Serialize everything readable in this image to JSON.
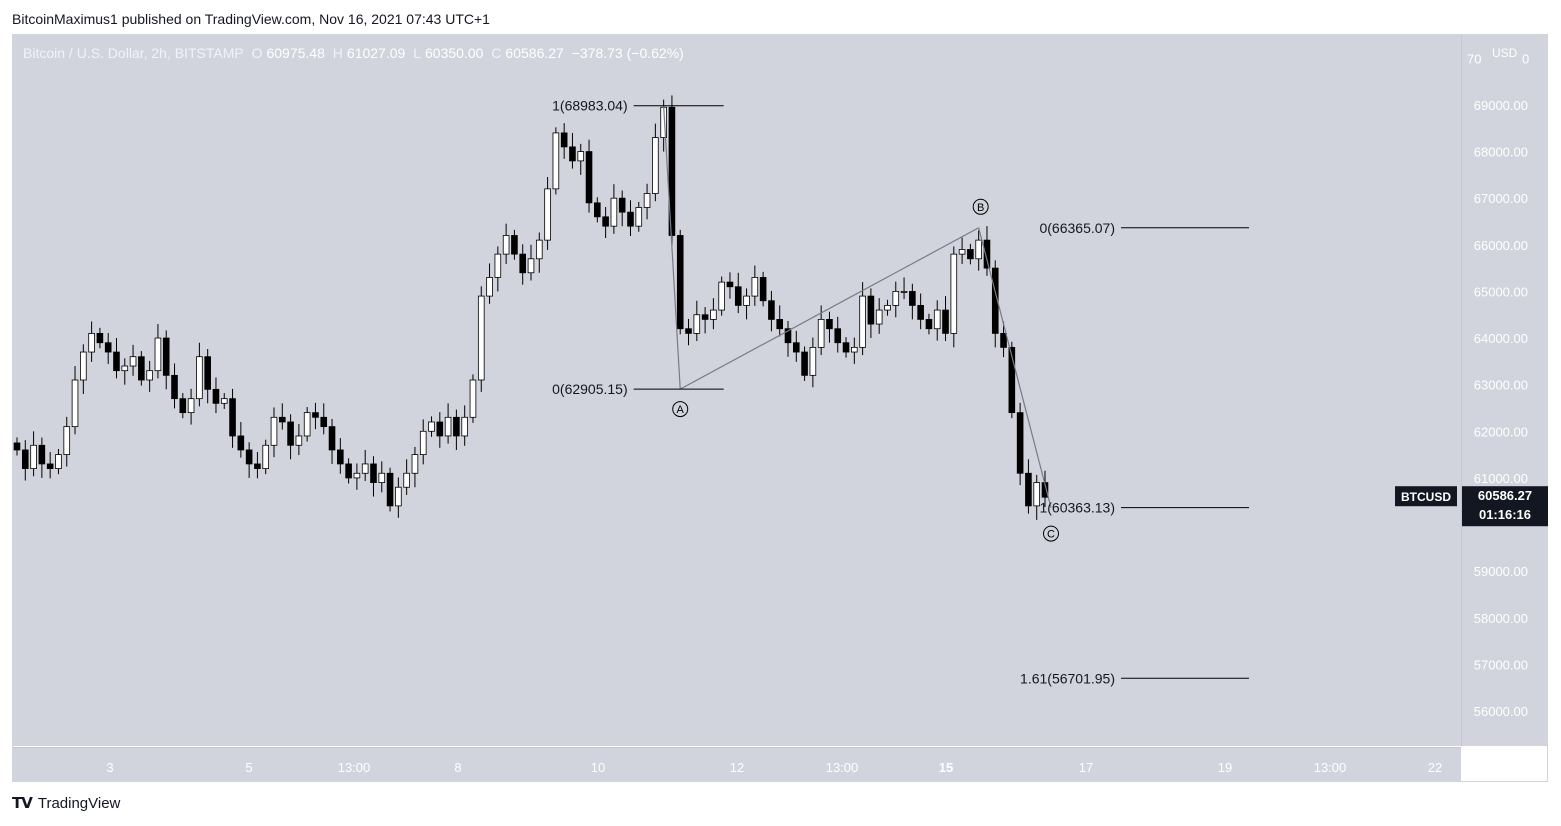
{
  "header": {
    "publisher": "BitcoinMaximus1 published on TradingView.com, Nov 16, 2021 07:43 UTC+1"
  },
  "legend": {
    "symbol": "Bitcoin / U.S. Dollar, 2h, BITSTAMP",
    "open_label": "O",
    "open": "60975.48",
    "high_label": "H",
    "high": "61027.09",
    "low_label": "L",
    "low": "60350.00",
    "close_label": "C",
    "close": "60586.27",
    "change": "−378.73 (−0.62%)"
  },
  "footer": {
    "brand": "TradingView"
  },
  "colors": {
    "background": "#d1d4dc",
    "candle_up": "#ffffff",
    "candle_down": "#000000",
    "wave_line": "#787b86",
    "fib_line": "#000000"
  },
  "chart_data": {
    "type": "candlestick",
    "title": "Bitcoin / U.S. Dollar, 2h, BITSTAMP",
    "y_unit": "USD",
    "ylim": [
      55250,
      70500
    ],
    "y_ticks": [
      "69000.00",
      "68000.00",
      "67000.00",
      "66000.00",
      "65000.00",
      "64000.00",
      "63000.00",
      "62000.00",
      "61000.00",
      "59000.00",
      "58000.00",
      "57000.00",
      "56000.00"
    ],
    "x_ticks": [
      "3",
      "5",
      "13:00",
      "8",
      "10",
      "12",
      "13:00",
      "15",
      "17",
      "19",
      "13:00",
      "22"
    ],
    "x_tick_bold": [
      false,
      false,
      false,
      false,
      false,
      false,
      false,
      true,
      false,
      false,
      false,
      false
    ],
    "axis_top_partial": "70",
    "axis_top_partial_right": "0",
    "axis_unit_label": "USD",
    "current_symbol_label": "BTCUSD",
    "current_price": "60586.27",
    "countdown": "01:16:16",
    "price_path": [
      61600,
      61200,
      61700,
      61300,
      61200,
      61500,
      62100,
      63100,
      63700,
      64100,
      63900,
      63700,
      63300,
      63400,
      63600,
      63100,
      63300,
      64000,
      63200,
      62700,
      62400,
      62700,
      63600,
      62900,
      62600,
      62700,
      61900,
      61600,
      61300,
      61200,
      61700,
      62300,
      62200,
      61700,
      61900,
      62400,
      62300,
      62100,
      61600,
      61300,
      61000,
      61100,
      61300,
      60900,
      61100,
      60400,
      60800,
      61100,
      61500,
      62000,
      62200,
      61900,
      62300,
      61900,
      62300,
      63100,
      64900,
      65300,
      65800,
      66200,
      65800,
      65400,
      65700,
      66100,
      67200,
      68400,
      68100,
      67800,
      68000,
      66900,
      66600,
      66400,
      67000,
      66700,
      66400,
      66800,
      67100,
      68300,
      68950,
      66200,
      64200,
      64100,
      64500,
      64400,
      64600,
      65200,
      65100,
      64700,
      64900,
      65300,
      64800,
      64400,
      64200,
      63900,
      63700,
      63200,
      63800,
      64400,
      64200,
      63900,
      63700,
      63800,
      64900,
      64300,
      64600,
      64700,
      65000,
      65000,
      64700,
      64400,
      64200,
      64600,
      64100,
      65800,
      65900,
      65700,
      66100,
      65500,
      64100,
      63800,
      62400,
      61100,
      60400,
      60900,
      60586
    ],
    "fib_AB": [
      {
        "ratio": "1",
        "price": 68983.04
      },
      {
        "ratio": "0",
        "price": 62905.15
      }
    ],
    "fib_BC": [
      {
        "ratio": "0",
        "price": 66365.07
      },
      {
        "ratio": "1",
        "price": 60363.13
      },
      {
        "ratio": "1.61",
        "price": 56701.95
      }
    ],
    "fib_AB_labels": [
      "1(68983.04)",
      "0(62905.15)"
    ],
    "fib_BC_labels": [
      "0(66365.07)",
      "1(60363.13)",
      "1.61(56701.95)"
    ],
    "waves": [
      {
        "label": "A",
        "price": 62905.15
      },
      {
        "label": "B",
        "price": 66365.07
      },
      {
        "label": "C",
        "price": 60363.13
      }
    ]
  }
}
